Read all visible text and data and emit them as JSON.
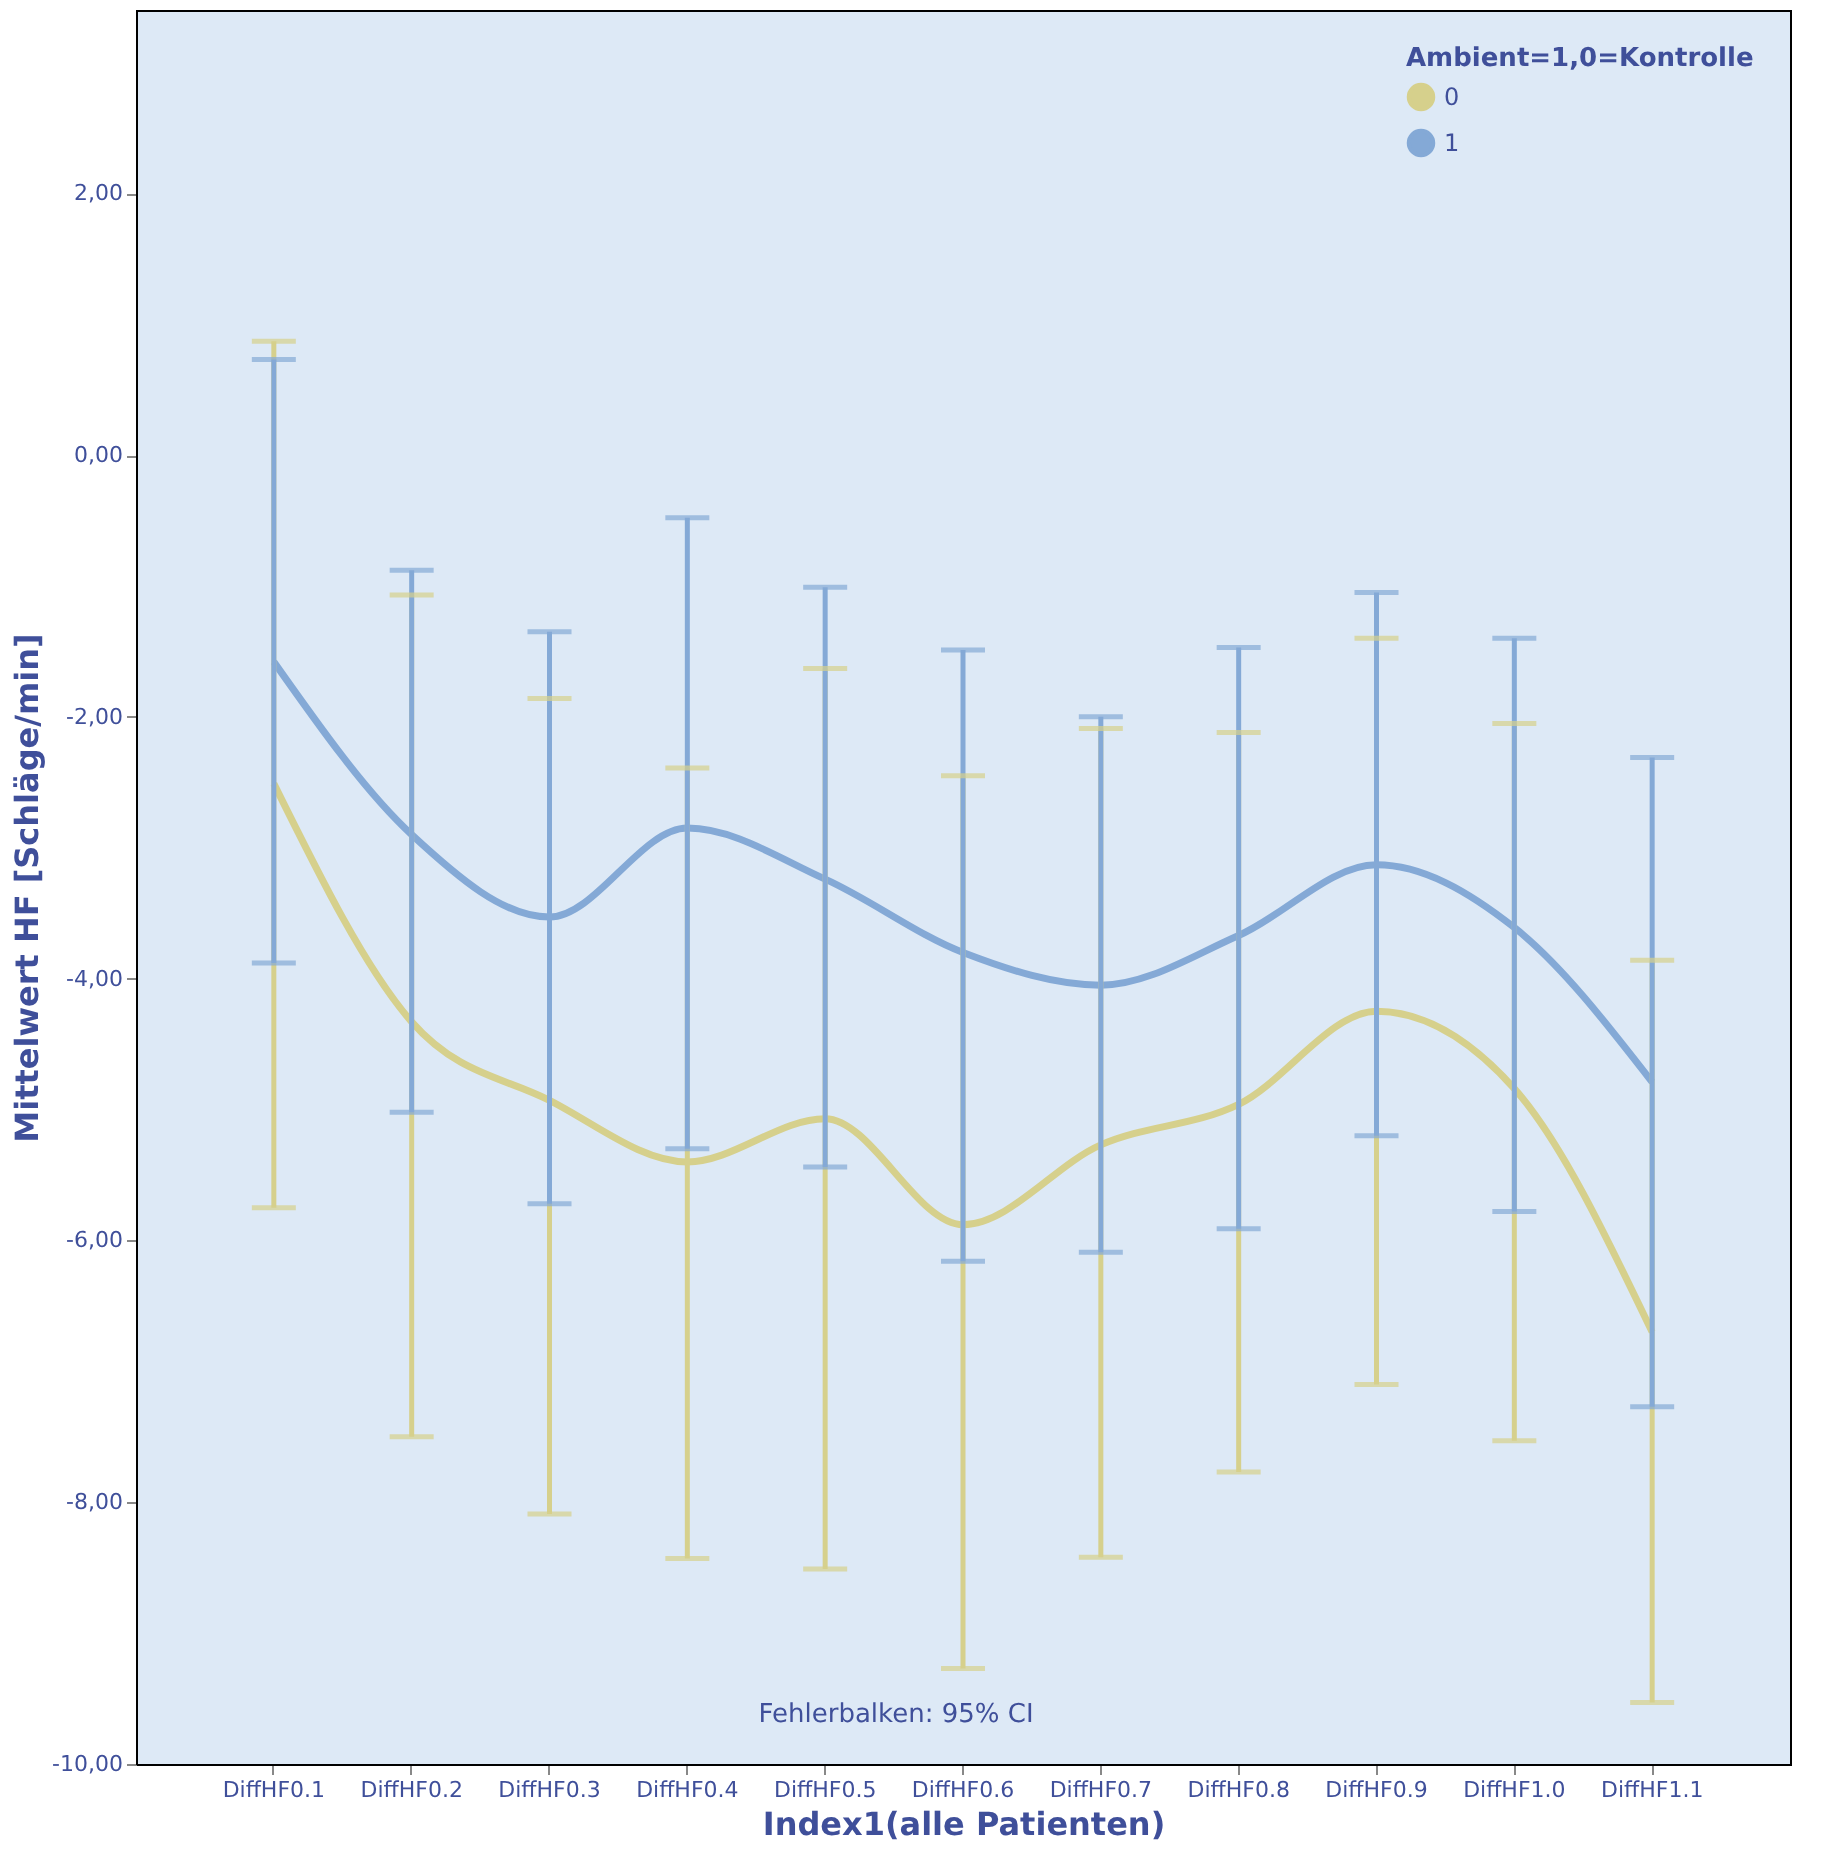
{
  "chart_data": {
    "type": "line",
    "xlabel": "Index1(alle Patienten)",
    "ylabel": "Mittelwert HF [Schläge/min]",
    "legend_title": "Ambient=1,0=Kontrolle",
    "legend": "top right",
    "grid": false,
    "marker": "none",
    "line_style": "solid",
    "categories": [
      "DiffHF0.1",
      "DiffHF0.2",
      "DiffHF0.3",
      "DiffHF0.4",
      "DiffHF0.5",
      "DiffHF0.6",
      "DiffHF0.7",
      "DiffHF0.8",
      "DiffHF0.9",
      "DiffHF1.0",
      "DiffHF1.1"
    ],
    "ylim": [
      -10,
      3.4
    ],
    "yticks": [
      {
        "value": -10,
        "label": "-10,00"
      },
      {
        "value": -8,
        "label": "-8,00"
      },
      {
        "value": -6,
        "label": "-6,00"
      },
      {
        "value": -4,
        "label": "-4,00"
      },
      {
        "value": -2,
        "label": "-2,00"
      },
      {
        "value": 0,
        "label": "0,00"
      },
      {
        "value": 2,
        "label": "2,00"
      }
    ],
    "series": [
      {
        "name": "0",
        "color": "#d6d08c",
        "values": [
          -2.51,
          -4.33,
          -4.93,
          -5.4,
          -5.07,
          -5.88,
          -5.27,
          -4.96,
          -4.25,
          -4.84,
          -6.7
        ],
        "errors": [
          [
            -5.75,
            0.87
          ],
          [
            -7.5,
            -1.07
          ],
          [
            -8.09,
            -1.86
          ],
          [
            -8.43,
            -2.39
          ],
          [
            -8.51,
            -1.63
          ],
          [
            -9.27,
            -2.45
          ],
          [
            -8.42,
            -2.09
          ],
          [
            -7.77,
            -2.12
          ],
          [
            -7.1,
            -1.4
          ],
          [
            -7.53,
            -2.05
          ],
          [
            -9.53,
            -3.86
          ]
        ]
      },
      {
        "name": "1",
        "color": "#84a9d6",
        "values": [
          -1.58,
          -2.9,
          -3.53,
          -2.85,
          -3.24,
          -3.8,
          -4.05,
          -3.67,
          -3.13,
          -3.61,
          -4.79
        ],
        "errors": [
          [
            -3.88,
            0.73
          ],
          [
            -5.02,
            -0.88
          ],
          [
            -5.72,
            -1.35
          ],
          [
            -5.3,
            -0.48
          ],
          [
            -5.44,
            -1.01
          ],
          [
            -6.16,
            -1.49
          ],
          [
            -6.09,
            -2.0
          ],
          [
            -5.91,
            -1.47
          ],
          [
            -5.2,
            -1.05
          ],
          [
            -5.78,
            -1.4
          ],
          [
            -7.27,
            -2.31
          ]
        ]
      }
    ],
    "annotations": [
      "Fehlerbalken: 95% CI"
    ]
  }
}
